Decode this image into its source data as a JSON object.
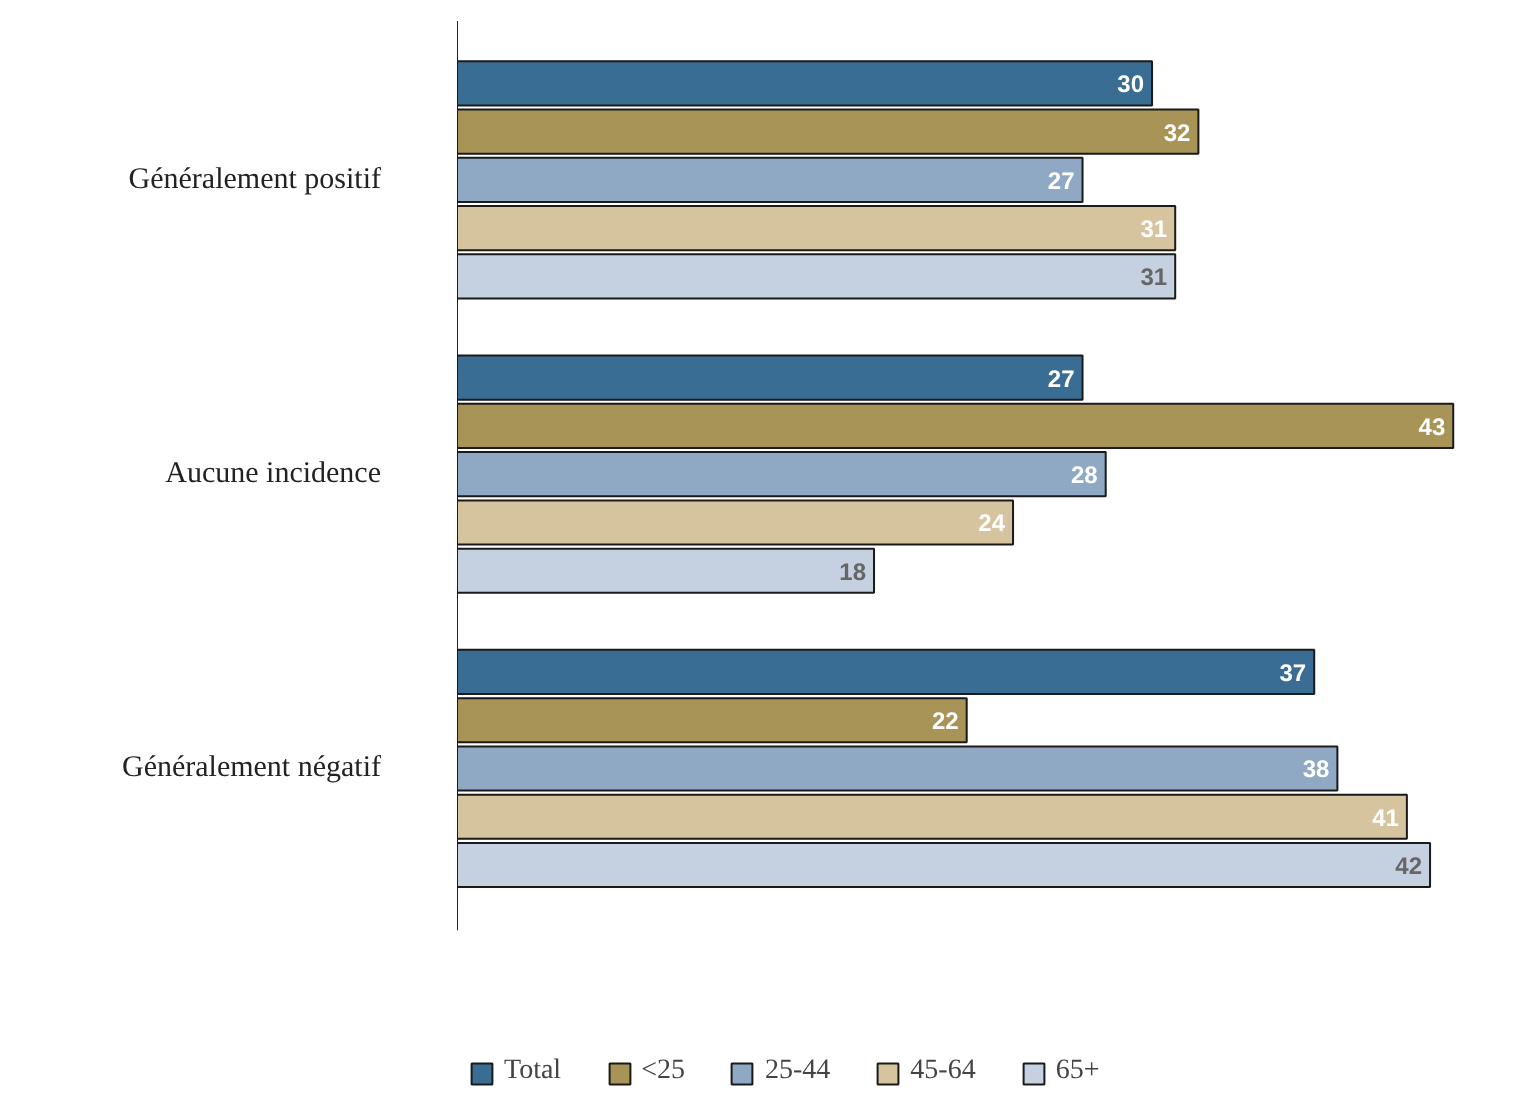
{
  "chart_data": {
    "type": "bar",
    "orientation": "horizontal",
    "categories": [
      "Généralement positif",
      "Aucune incidence",
      "Généralement négatif"
    ],
    "series": [
      {
        "name": "Total",
        "color": "#3a6d94",
        "values": [
          30,
          27,
          37
        ]
      },
      {
        "name": "<25",
        "color": "#a89456",
        "values": [
          32,
          43,
          22
        ]
      },
      {
        "name": "25-44",
        "color": "#8fa8c4",
        "values": [
          27,
          28,
          38
        ]
      },
      {
        "name": "45-64",
        "color": "#d6c49e",
        "values": [
          31,
          24,
          41
        ]
      },
      {
        "name": "65+",
        "color": "#c5d0e0",
        "values": [
          31,
          18,
          42
        ]
      }
    ],
    "data_labels": true,
    "legend": "bottom",
    "grid": false
  }
}
